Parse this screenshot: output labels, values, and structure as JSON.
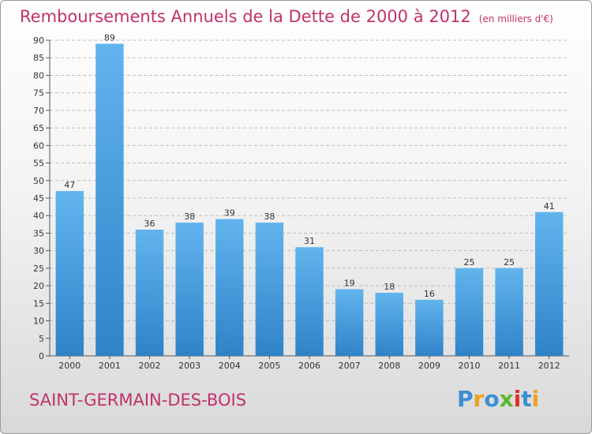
{
  "header": {
    "title": "Remboursements Annuels de la Dette de 2000 à 2012",
    "unit": "(en milliers d'€)"
  },
  "footer": {
    "commune": "SAINT-GERMAIN-DES-BOIS",
    "logo_letters": [
      {
        "char": "P",
        "color": "#3a8fd6"
      },
      {
        "char": "r",
        "color": "#f0a020"
      },
      {
        "char": "o",
        "color": "#3a8fd6"
      },
      {
        "char": "x",
        "color": "#5cb82e"
      },
      {
        "char": "i",
        "color": "#e0302a"
      },
      {
        "char": "t",
        "color": "#3a8fd6"
      },
      {
        "char": "i",
        "color": "#f0a020"
      }
    ]
  },
  "colors": {
    "title": "#c0326b",
    "bar_light": "#62b4ee",
    "bar_dark": "#2f83c8"
  },
  "chart_data": {
    "type": "bar",
    "title": "Remboursements Annuels de la Dette de 2000 à 2012",
    "subtitle": "(en milliers d'€)",
    "xlabel": "",
    "ylabel": "",
    "categories": [
      "2000",
      "2001",
      "2002",
      "2003",
      "2004",
      "2005",
      "2006",
      "2007",
      "2008",
      "2009",
      "2010",
      "2011",
      "2012"
    ],
    "values": [
      47,
      89,
      36,
      38,
      39,
      38,
      31,
      19,
      18,
      16,
      25,
      25,
      41
    ],
    "ylim": [
      0,
      90
    ],
    "yticks": [
      0,
      5,
      10,
      15,
      20,
      25,
      30,
      35,
      40,
      45,
      50,
      55,
      60,
      65,
      70,
      75,
      80,
      85,
      90
    ],
    "grid": "horizontal dashed"
  }
}
